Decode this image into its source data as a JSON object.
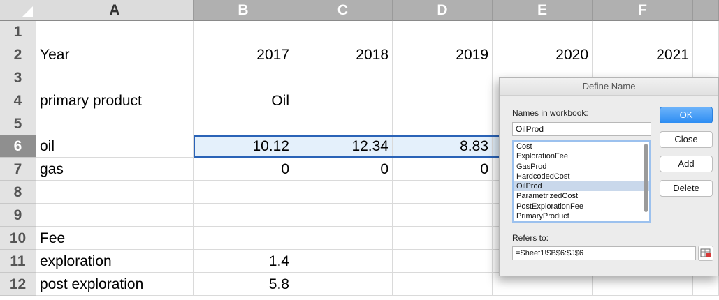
{
  "columns": [
    "A",
    "B",
    "C",
    "D",
    "E",
    "F"
  ],
  "rows": [
    {
      "num": "1",
      "a": "",
      "b": "",
      "c": "",
      "d": "",
      "e": "",
      "f": ""
    },
    {
      "num": "2",
      "a": "Year",
      "b": "2017",
      "c": "2018",
      "d": "2019",
      "e": "2020",
      "f": "2021"
    },
    {
      "num": "3",
      "a": "",
      "b": "",
      "c": "",
      "d": "",
      "e": "",
      "f": ""
    },
    {
      "num": "4",
      "a": "primary product",
      "b": "Oil",
      "c": "",
      "d": "",
      "e": "",
      "f": ""
    },
    {
      "num": "5",
      "a": "",
      "b": "",
      "c": "",
      "d": "",
      "e": "",
      "f": ""
    },
    {
      "num": "6",
      "a": "oil",
      "b": "10.12",
      "c": "12.34",
      "d": "8.83",
      "e": "",
      "f": ""
    },
    {
      "num": "7",
      "a": "gas",
      "b": "0",
      "c": "0",
      "d": "0",
      "e": "",
      "f": ""
    },
    {
      "num": "8",
      "a": "",
      "b": "",
      "c": "",
      "d": "",
      "e": "",
      "f": ""
    },
    {
      "num": "9",
      "a": "",
      "b": "",
      "c": "",
      "d": "",
      "e": "",
      "f": ""
    },
    {
      "num": "10",
      "a": "Fee",
      "b": "",
      "c": "",
      "d": "",
      "e": "",
      "f": ""
    },
    {
      "num": "11",
      "a": "exploration",
      "b": "1.4",
      "c": "",
      "d": "",
      "e": "",
      "f": ""
    },
    {
      "num": "12",
      "a": "post exploration",
      "b": "5.8",
      "c": "",
      "d": "",
      "e": "",
      "f": ""
    }
  ],
  "selected_row": "6",
  "dialog": {
    "title": "Define Name",
    "names_label": "Names in workbook:",
    "name_value": "OilProd",
    "names": [
      "Cost",
      "ExplorationFee",
      "GasProd",
      "HardcodedCost",
      "OilProd",
      "ParametrizedCost",
      "PostExplorationFee",
      "PrimaryProduct"
    ],
    "selected_name": "OilProd",
    "refers_label": "Refers to:",
    "refers_value": "=Sheet1!$B$6:$J$6",
    "buttons": {
      "ok": "OK",
      "close": "Close",
      "add": "Add",
      "delete": "Delete"
    },
    "accent_color": "#2d8df3"
  }
}
